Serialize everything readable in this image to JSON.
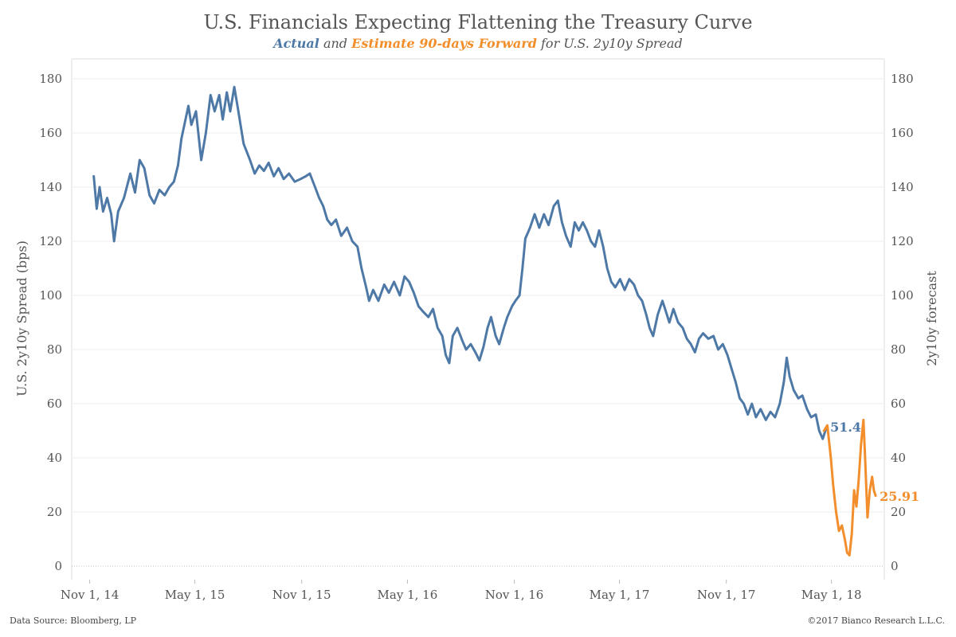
{
  "header": {
    "title": "U.S. Financials Expecting Flattening the Treasury Curve",
    "subtitle_actual": "Actual",
    "subtitle_and": " and ",
    "subtitle_estimate": "Estimate 90-days Forward",
    "subtitle_rest": " for U.S. 2y10y Spread"
  },
  "footer": {
    "source": "Data Source: Bloomberg, LP",
    "copyright": "©2017 Bianco Research L.L.C."
  },
  "chart_data": {
    "type": "line",
    "ylabel": "U.S. 2y10y Spread (bps)",
    "ylabel_right": "2y10y forecast",
    "ylim": [
      0,
      180
    ],
    "yticks": [
      0,
      20,
      40,
      60,
      80,
      100,
      120,
      140,
      160,
      180
    ],
    "xlim": [
      "2014-10-01",
      "2018-07-31"
    ],
    "xticks": [
      "Nov 1, 14",
      "May 1, 15",
      "Nov 1, 15",
      "May 1, 16",
      "Nov 1, 16",
      "May 1, 17",
      "Nov 1, 17",
      "May 1, 18"
    ],
    "xtick_dates": [
      "2014-11-01",
      "2015-05-01",
      "2015-11-01",
      "2016-05-01",
      "2016-11-01",
      "2017-05-01",
      "2017-11-01",
      "2018-05-01"
    ],
    "grid": "horizontal",
    "colors": {
      "actual": "#4e79a7",
      "forecast": "#f28e2b"
    },
    "series": [
      {
        "key": "actual",
        "end_label": "51.4",
        "points": [
          [
            "2014-11-08",
            144
          ],
          [
            "2014-11-13",
            132
          ],
          [
            "2014-11-18",
            140
          ],
          [
            "2014-11-24",
            131
          ],
          [
            "2014-12-01",
            136
          ],
          [
            "2014-12-08",
            130
          ],
          [
            "2014-12-13",
            120
          ],
          [
            "2014-12-20",
            131
          ],
          [
            "2014-12-30",
            136
          ],
          [
            "2015-01-10",
            145
          ],
          [
            "2015-01-18",
            138
          ],
          [
            "2015-01-26",
            150
          ],
          [
            "2015-02-03",
            147
          ],
          [
            "2015-02-12",
            137
          ],
          [
            "2015-02-20",
            134
          ],
          [
            "2015-03-01",
            139
          ],
          [
            "2015-03-10",
            137
          ],
          [
            "2015-03-18",
            140
          ],
          [
            "2015-03-26",
            142
          ],
          [
            "2015-04-02",
            148
          ],
          [
            "2015-04-08",
            158
          ],
          [
            "2015-04-16",
            166
          ],
          [
            "2015-04-20",
            170
          ],
          [
            "2015-04-25",
            163
          ],
          [
            "2015-05-03",
            168
          ],
          [
            "2015-05-12",
            150
          ],
          [
            "2015-05-20",
            160
          ],
          [
            "2015-05-28",
            174
          ],
          [
            "2015-06-04",
            168
          ],
          [
            "2015-06-12",
            174
          ],
          [
            "2015-06-18",
            165
          ],
          [
            "2015-06-25",
            175
          ],
          [
            "2015-07-01",
            168
          ],
          [
            "2015-07-08",
            177
          ],
          [
            "2015-07-15",
            168
          ],
          [
            "2015-07-24",
            156
          ],
          [
            "2015-08-04",
            150
          ],
          [
            "2015-08-12",
            145
          ],
          [
            "2015-08-20",
            148
          ],
          [
            "2015-08-28",
            146
          ],
          [
            "2015-09-05",
            149
          ],
          [
            "2015-09-14",
            144
          ],
          [
            "2015-09-22",
            147
          ],
          [
            "2015-10-01",
            143
          ],
          [
            "2015-10-10",
            145
          ],
          [
            "2015-10-20",
            142
          ],
          [
            "2015-10-30",
            143
          ],
          [
            "2015-11-08",
            144
          ],
          [
            "2015-11-15",
            145
          ],
          [
            "2015-11-24",
            140
          ],
          [
            "2015-12-01",
            136
          ],
          [
            "2015-12-08",
            133
          ],
          [
            "2015-12-15",
            128
          ],
          [
            "2015-12-22",
            126
          ],
          [
            "2015-12-30",
            128
          ],
          [
            "2016-01-08",
            122
          ],
          [
            "2016-01-18",
            125
          ],
          [
            "2016-01-27",
            120
          ],
          [
            "2016-02-05",
            118
          ],
          [
            "2016-02-12",
            110
          ],
          [
            "2016-02-20",
            103
          ],
          [
            "2016-02-25",
            98
          ],
          [
            "2016-03-03",
            102
          ],
          [
            "2016-03-12",
            98
          ],
          [
            "2016-03-22",
            104
          ],
          [
            "2016-03-30",
            101
          ],
          [
            "2016-04-08",
            105
          ],
          [
            "2016-04-18",
            100
          ],
          [
            "2016-04-26",
            107
          ],
          [
            "2016-05-04",
            105
          ],
          [
            "2016-05-12",
            101
          ],
          [
            "2016-05-20",
            96
          ],
          [
            "2016-05-28",
            94
          ],
          [
            "2016-06-06",
            92
          ],
          [
            "2016-06-14",
            95
          ],
          [
            "2016-06-22",
            88
          ],
          [
            "2016-06-30",
            85
          ],
          [
            "2016-07-06",
            78
          ],
          [
            "2016-07-12",
            75
          ],
          [
            "2016-07-18",
            85
          ],
          [
            "2016-07-26",
            88
          ],
          [
            "2016-08-04",
            83
          ],
          [
            "2016-08-10",
            80
          ],
          [
            "2016-08-18",
            82
          ],
          [
            "2016-08-26",
            79
          ],
          [
            "2016-09-02",
            76
          ],
          [
            "2016-09-09",
            81
          ],
          [
            "2016-09-16",
            88
          ],
          [
            "2016-09-22",
            92
          ],
          [
            "2016-09-30",
            85
          ],
          [
            "2016-10-06",
            82
          ],
          [
            "2016-10-14",
            88
          ],
          [
            "2016-10-20",
            92
          ],
          [
            "2016-10-28",
            96
          ],
          [
            "2016-11-03",
            98
          ],
          [
            "2016-11-10",
            100
          ],
          [
            "2016-11-15",
            110
          ],
          [
            "2016-11-20",
            121
          ],
          [
            "2016-11-28",
            125
          ],
          [
            "2016-12-06",
            130
          ],
          [
            "2016-12-14",
            125
          ],
          [
            "2016-12-22",
            130
          ],
          [
            "2016-12-30",
            126
          ],
          [
            "2017-01-08",
            133
          ],
          [
            "2017-01-15",
            135
          ],
          [
            "2017-01-22",
            127
          ],
          [
            "2017-01-29",
            122
          ],
          [
            "2017-02-06",
            118
          ],
          [
            "2017-02-13",
            127
          ],
          [
            "2017-02-20",
            124
          ],
          [
            "2017-02-27",
            127
          ],
          [
            "2017-03-06",
            124
          ],
          [
            "2017-03-13",
            120
          ],
          [
            "2017-03-20",
            118
          ],
          [
            "2017-03-27",
            124
          ],
          [
            "2017-04-03",
            118
          ],
          [
            "2017-04-10",
            110
          ],
          [
            "2017-04-17",
            105
          ],
          [
            "2017-04-24",
            103
          ],
          [
            "2017-05-02",
            106
          ],
          [
            "2017-05-10",
            102
          ],
          [
            "2017-05-18",
            106
          ],
          [
            "2017-05-26",
            104
          ],
          [
            "2017-06-02",
            100
          ],
          [
            "2017-06-09",
            98
          ],
          [
            "2017-06-16",
            93
          ],
          [
            "2017-06-22",
            88
          ],
          [
            "2017-06-28",
            85
          ],
          [
            "2017-07-06",
            93
          ],
          [
            "2017-07-14",
            98
          ],
          [
            "2017-07-20",
            94
          ],
          [
            "2017-07-26",
            90
          ],
          [
            "2017-08-02",
            95
          ],
          [
            "2017-08-10",
            90
          ],
          [
            "2017-08-18",
            88
          ],
          [
            "2017-08-25",
            84
          ],
          [
            "2017-09-01",
            82
          ],
          [
            "2017-09-08",
            79
          ],
          [
            "2017-09-15",
            84
          ],
          [
            "2017-09-22",
            86
          ],
          [
            "2017-10-01",
            84
          ],
          [
            "2017-10-10",
            85
          ],
          [
            "2017-10-18",
            80
          ],
          [
            "2017-10-26",
            82
          ],
          [
            "2017-11-03",
            78
          ],
          [
            "2017-11-10",
            73
          ],
          [
            "2017-11-17",
            68
          ],
          [
            "2017-11-24",
            62
          ],
          [
            "2017-12-01",
            60
          ],
          [
            "2017-12-08",
            56
          ],
          [
            "2017-12-15",
            60
          ],
          [
            "2017-12-22",
            55
          ],
          [
            "2017-12-30",
            58
          ],
          [
            "2018-01-08",
            54
          ],
          [
            "2018-01-16",
            57
          ],
          [
            "2018-01-24",
            55
          ],
          [
            "2018-02-01",
            60
          ],
          [
            "2018-02-08",
            68
          ],
          [
            "2018-02-13",
            77
          ],
          [
            "2018-02-18",
            70
          ],
          [
            "2018-02-25",
            65
          ],
          [
            "2018-03-05",
            62
          ],
          [
            "2018-03-12",
            63
          ],
          [
            "2018-03-20",
            58
          ],
          [
            "2018-03-27",
            55
          ],
          [
            "2018-04-04",
            56
          ],
          [
            "2018-04-10",
            50
          ],
          [
            "2018-04-16",
            47
          ],
          [
            "2018-04-22",
            51
          ]
        ]
      },
      {
        "key": "forecast",
        "end_label": "25.91",
        "points": [
          [
            "2018-04-18",
            50
          ],
          [
            "2018-04-24",
            52
          ],
          [
            "2018-04-30",
            40
          ],
          [
            "2018-05-04",
            30
          ],
          [
            "2018-05-09",
            20
          ],
          [
            "2018-05-14",
            13
          ],
          [
            "2018-05-19",
            15
          ],
          [
            "2018-05-24",
            10
          ],
          [
            "2018-05-28",
            5
          ],
          [
            "2018-06-01",
            4
          ],
          [
            "2018-06-05",
            12
          ],
          [
            "2018-06-09",
            28
          ],
          [
            "2018-06-13",
            22
          ],
          [
            "2018-06-17",
            32
          ],
          [
            "2018-06-21",
            45
          ],
          [
            "2018-06-25",
            54
          ],
          [
            "2018-06-28",
            40
          ],
          [
            "2018-07-02",
            18
          ],
          [
            "2018-07-06",
            28
          ],
          [
            "2018-07-10",
            33
          ],
          [
            "2018-07-13",
            28
          ],
          [
            "2018-07-16",
            26
          ]
        ]
      }
    ]
  }
}
